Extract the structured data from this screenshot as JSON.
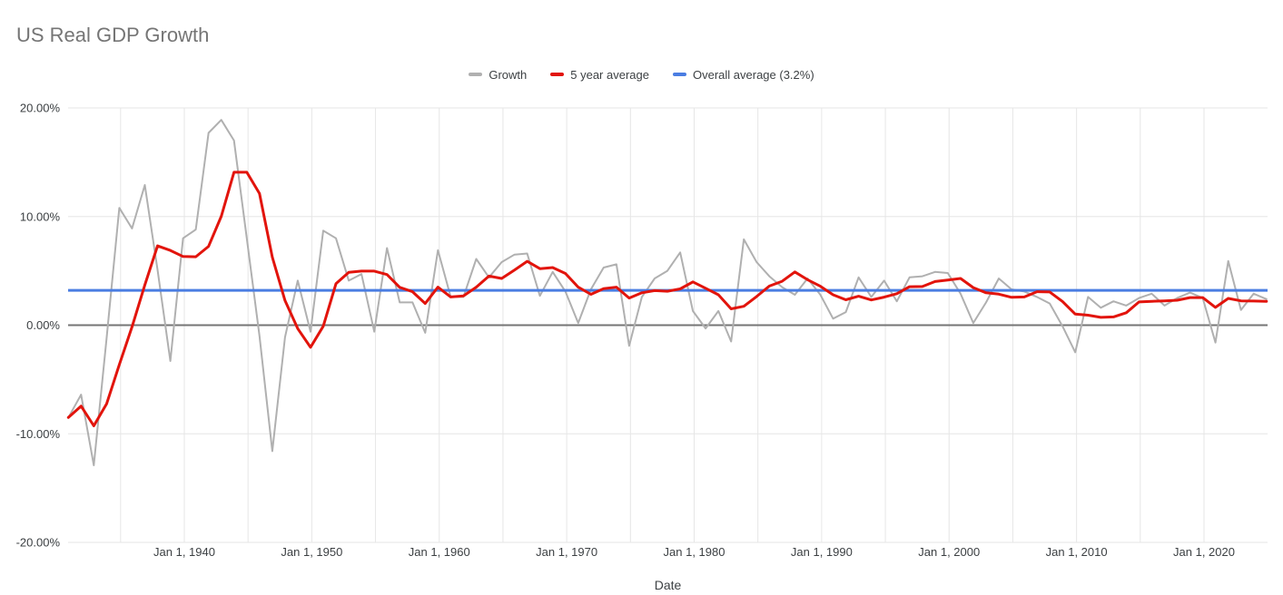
{
  "header": {
    "title": "US Real GDP Growth"
  },
  "legend": {
    "items": [
      {
        "label": "Growth",
        "color": "#b0b0b0"
      },
      {
        "label": "5 year average",
        "color": "#e2140c"
      },
      {
        "label": "Overall average (3.2%)",
        "color": "#4a7de2"
      }
    ]
  },
  "chart_data": {
    "type": "line",
    "title": "US Real GDP Growth",
    "xlabel": "Date",
    "ylabel": "",
    "ylim": [
      -20,
      20
    ],
    "grid": true,
    "legend_position": "top",
    "y_tick_labels": [
      "20.00%",
      "10.00%",
      "0.00%",
      "-10.00%",
      "-20.00%"
    ],
    "y_tick_values": [
      20,
      10,
      0,
      -10,
      -20
    ],
    "x_tick_labels": [
      "Jan 1, 1940",
      "Jan 1, 1950",
      "Jan 1, 1960",
      "Jan 1, 1970",
      "Jan 1, 1980",
      "Jan 1, 1990",
      "Jan 1, 2000",
      "Jan 1, 2010",
      "Jan 1, 2020"
    ],
    "x_tick_years": [
      1940,
      1950,
      1960,
      1970,
      1980,
      1990,
      2000,
      2010,
      2020
    ],
    "x_gridline_years": [
      1935,
      1940,
      1945,
      1950,
      1955,
      1960,
      1965,
      1970,
      1975,
      1980,
      1985,
      1990,
      1995,
      2000,
      2005,
      2010,
      2015,
      2020
    ],
    "x_domain_years": [
      1930.9,
      2025.0
    ],
    "start_year": 1930,
    "end_year": 2024,
    "point_date_offset_years": 0.9,
    "overall_average_percent": 3.2,
    "series": [
      {
        "name": "Growth",
        "color": "#b0b0b0",
        "width": 2,
        "values": [
          -8.5,
          -6.4,
          -12.9,
          -1.2,
          10.8,
          8.9,
          12.9,
          5.1,
          -3.3,
          8.0,
          8.8,
          17.7,
          18.9,
          17.0,
          8.0,
          -1.0,
          -11.6,
          -1.1,
          4.1,
          -0.6,
          8.7,
          8.0,
          4.1,
          4.7,
          -0.6,
          7.1,
          2.1,
          2.1,
          -0.7,
          6.9,
          2.6,
          2.6,
          6.1,
          4.4,
          5.8,
          6.5,
          6.6,
          2.7,
          4.9,
          3.1,
          0.2,
          3.3,
          5.3,
          5.6,
          -1.9,
          2.6,
          4.3,
          5.0,
          6.7,
          1.3,
          -0.3,
          1.3,
          -1.5,
          7.9,
          5.8,
          4.5,
          3.5,
          2.8,
          4.3,
          2.8,
          0.6,
          1.2,
          4.4,
          2.6,
          4.1,
          2.2,
          4.4,
          4.5,
          4.9,
          4.8,
          2.9,
          0.2,
          2.1,
          4.3,
          3.3,
          3.1,
          2.6,
          2.0,
          -0.1,
          -2.5,
          2.6,
          1.6,
          2.2,
          1.8,
          2.5,
          2.9,
          1.8,
          2.5,
          3.0,
          2.5,
          -1.6,
          5.9,
          1.4,
          2.9,
          2.4
        ]
      },
      {
        "name": "5 year average",
        "color": "#e2140c",
        "width": 3,
        "derived": "trailing 5-year mean of Growth series"
      },
      {
        "name": "Overall average (3.2%)",
        "color": "#4a7de2",
        "width": 3,
        "value": 3.2
      }
    ]
  }
}
